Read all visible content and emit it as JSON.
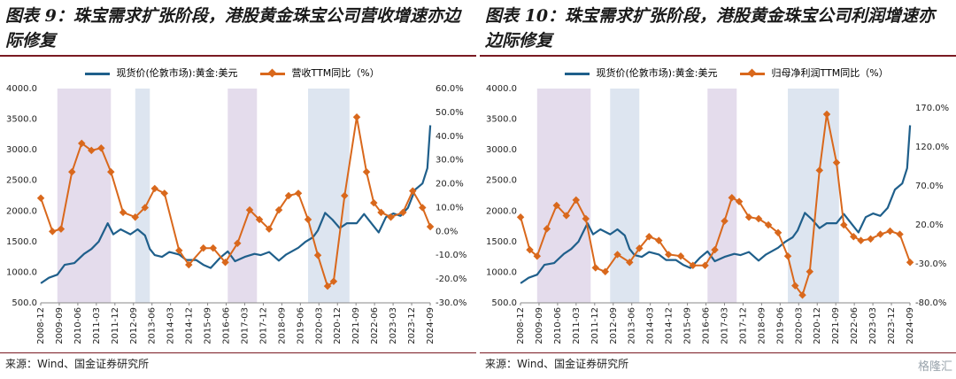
{
  "charts": [
    {
      "title": "图表 9：珠宝需求扩张阶段，港股黄金珠宝公司营收增速亦边际修复",
      "source": "来源：Wind、国金证券研究所",
      "legend_gold": "现货价(伦敦市场):黄金:美元",
      "legend_metric": "营收TTM同比（%）"
    },
    {
      "title": "图表 10：珠宝需求扩张阶段，港股黄金珠宝公司利润增速亦边际修复",
      "source": "来源：Wind、国金证券研究所",
      "legend_gold": "现货价(伦敦市场):黄金:美元",
      "legend_metric": "归母净利润TTM同比（%）"
    }
  ],
  "watermark": "格隆汇",
  "colors": {
    "gold": "#1f5f8b",
    "metric": "#d9681c",
    "shade_purple": "#e4dcec",
    "shade_blue": "#dde5f0",
    "rule": "#7a1a22"
  },
  "chart_data": [
    {
      "type": "line",
      "x_tick_labels": [
        "2008-12",
        "2009-09",
        "2010-06",
        "2011-03",
        "2011-12",
        "2012-09",
        "2013-06",
        "2014-03",
        "2014-12",
        "2015-09",
        "2016-06",
        "2017-03",
        "2017-12",
        "2018-09",
        "2019-06",
        "2020-03",
        "2020-12",
        "2021-09",
        "2022-06",
        "2023-03",
        "2023-12",
        "2024-09"
      ],
      "y_left_ticks": [
        "4000.0",
        "3500.0",
        "3000.0",
        "2500.0",
        "2000.0",
        "1500.0",
        "1000.0",
        "500.0"
      ],
      "y_left_range": [
        500,
        4000
      ],
      "y_right_ticks": [
        "60.0%",
        "50.0%",
        "40.0%",
        "30.0%",
        "20.0%",
        "10.0%",
        "0.0%",
        "-10.0%",
        "-20.0%",
        "-30.0%"
      ],
      "y_right_range": [
        -30,
        60
      ],
      "x_range": [
        2008.917,
        2024.917
      ],
      "shaded_periods": [
        {
          "start": 2009.6,
          "end": 2011.8,
          "color": "purple"
        },
        {
          "start": 2012.8,
          "end": 2013.4,
          "color": "blue"
        },
        {
          "start": 2016.6,
          "end": 2017.8,
          "color": "purple"
        },
        {
          "start": 2019.9,
          "end": 2021.6,
          "color": "blue"
        }
      ],
      "series": [
        {
          "name": "现货价(伦敦市场):黄金:美元",
          "axis": "left",
          "points": [
            [
              2008.92,
              820
            ],
            [
              2009.25,
              910
            ],
            [
              2009.6,
              960
            ],
            [
              2009.9,
              1120
            ],
            [
              2010.3,
              1150
            ],
            [
              2010.7,
              1300
            ],
            [
              2011.0,
              1380
            ],
            [
              2011.3,
              1500
            ],
            [
              2011.67,
              1800
            ],
            [
              2011.9,
              1620
            ],
            [
              2012.2,
              1700
            ],
            [
              2012.6,
              1620
            ],
            [
              2012.9,
              1700
            ],
            [
              2013.2,
              1600
            ],
            [
              2013.4,
              1380
            ],
            [
              2013.6,
              1280
            ],
            [
              2013.9,
              1250
            ],
            [
              2014.2,
              1330
            ],
            [
              2014.6,
              1290
            ],
            [
              2014.9,
              1200
            ],
            [
              2015.3,
              1200
            ],
            [
              2015.6,
              1120
            ],
            [
              2015.9,
              1070
            ],
            [
              2016.3,
              1240
            ],
            [
              2016.6,
              1340
            ],
            [
              2016.9,
              1180
            ],
            [
              2017.3,
              1250
            ],
            [
              2017.7,
              1300
            ],
            [
              2017.95,
              1280
            ],
            [
              2018.3,
              1330
            ],
            [
              2018.7,
              1190
            ],
            [
              2019.0,
              1290
            ],
            [
              2019.5,
              1400
            ],
            [
              2019.8,
              1500
            ],
            [
              2020.1,
              1570
            ],
            [
              2020.3,
              1680
            ],
            [
              2020.6,
              1970
            ],
            [
              2020.9,
              1860
            ],
            [
              2021.2,
              1720
            ],
            [
              2021.5,
              1800
            ],
            [
              2021.9,
              1800
            ],
            [
              2022.2,
              1950
            ],
            [
              2022.5,
              1800
            ],
            [
              2022.8,
              1650
            ],
            [
              2023.1,
              1900
            ],
            [
              2023.4,
              1960
            ],
            [
              2023.7,
              1920
            ],
            [
              2024.0,
              2050
            ],
            [
              2024.3,
              2350
            ],
            [
              2024.6,
              2450
            ],
            [
              2024.8,
              2700
            ],
            [
              2024.92,
              3400
            ]
          ]
        },
        {
          "name": "营收TTM同比（%）",
          "axis": "right",
          "points": [
            [
              2008.92,
              14
            ],
            [
              2009.4,
              0
            ],
            [
              2009.75,
              1
            ],
            [
              2010.2,
              25
            ],
            [
              2010.6,
              37
            ],
            [
              2011.0,
              34
            ],
            [
              2011.4,
              35
            ],
            [
              2011.8,
              25
            ],
            [
              2012.3,
              8
            ],
            [
              2012.8,
              6
            ],
            [
              2013.2,
              10
            ],
            [
              2013.6,
              18
            ],
            [
              2014.0,
              16
            ],
            [
              2014.6,
              -8
            ],
            [
              2015.0,
              -14
            ],
            [
              2015.6,
              -7
            ],
            [
              2016.0,
              -7
            ],
            [
              2016.5,
              -13
            ],
            [
              2017.0,
              -5
            ],
            [
              2017.5,
              9
            ],
            [
              2017.9,
              5
            ],
            [
              2018.3,
              1
            ],
            [
              2018.7,
              9
            ],
            [
              2019.1,
              15
            ],
            [
              2019.5,
              16
            ],
            [
              2019.9,
              5
            ],
            [
              2020.3,
              -10
            ],
            [
              2020.7,
              -23
            ],
            [
              2020.95,
              -21
            ],
            [
              2021.4,
              15
            ],
            [
              2021.9,
              48
            ],
            [
              2022.3,
              25
            ],
            [
              2022.6,
              12
            ],
            [
              2022.9,
              8
            ],
            [
              2023.3,
              6
            ],
            [
              2023.8,
              8
            ],
            [
              2024.2,
              17
            ],
            [
              2024.6,
              10
            ],
            [
              2024.92,
              2
            ]
          ]
        }
      ]
    },
    {
      "type": "line",
      "x_tick_labels": [
        "2008-12",
        "2009-09",
        "2010-06",
        "2011-03",
        "2011-12",
        "2012-09",
        "2013-06",
        "2014-03",
        "2014-12",
        "2015-09",
        "2016-06",
        "2017-03",
        "2017-12",
        "2018-09",
        "2019-06",
        "2020-03",
        "2020-12",
        "2021-09",
        "2022-06",
        "2023-03",
        "2023-12",
        "2024-09"
      ],
      "y_left_ticks": [
        "4000.0",
        "3500.0",
        "3000.0",
        "2500.0",
        "2000.0",
        "1500.0",
        "1000.0",
        "500.0"
      ],
      "y_left_range": [
        500,
        4000
      ],
      "y_right_ticks": [
        "170.0%",
        "120.0%",
        "70.0%",
        "20.0%",
        "-30.0%",
        "-80.0%"
      ],
      "y_right_range": [
        -80,
        195
      ],
      "x_range": [
        2008.917,
        2024.917
      ],
      "shaded_periods": [
        {
          "start": 2009.6,
          "end": 2011.8,
          "color": "purple"
        },
        {
          "start": 2012.6,
          "end": 2013.8,
          "color": "blue"
        },
        {
          "start": 2016.6,
          "end": 2017.8,
          "color": "purple"
        },
        {
          "start": 2019.9,
          "end": 2022.0,
          "color": "blue"
        }
      ],
      "series": [
        {
          "name": "现货价(伦敦市场):黄金:美元",
          "axis": "left",
          "points": [
            [
              2008.92,
              820
            ],
            [
              2009.25,
              910
            ],
            [
              2009.6,
              960
            ],
            [
              2009.9,
              1120
            ],
            [
              2010.3,
              1150
            ],
            [
              2010.7,
              1300
            ],
            [
              2011.0,
              1380
            ],
            [
              2011.3,
              1500
            ],
            [
              2011.67,
              1800
            ],
            [
              2011.9,
              1620
            ],
            [
              2012.2,
              1700
            ],
            [
              2012.6,
              1620
            ],
            [
              2012.9,
              1700
            ],
            [
              2013.2,
              1600
            ],
            [
              2013.4,
              1380
            ],
            [
              2013.6,
              1280
            ],
            [
              2013.9,
              1250
            ],
            [
              2014.2,
              1330
            ],
            [
              2014.6,
              1290
            ],
            [
              2014.9,
              1200
            ],
            [
              2015.3,
              1200
            ],
            [
              2015.6,
              1120
            ],
            [
              2015.9,
              1070
            ],
            [
              2016.3,
              1240
            ],
            [
              2016.6,
              1340
            ],
            [
              2016.9,
              1180
            ],
            [
              2017.3,
              1250
            ],
            [
              2017.7,
              1300
            ],
            [
              2017.95,
              1280
            ],
            [
              2018.3,
              1330
            ],
            [
              2018.7,
              1190
            ],
            [
              2019.0,
              1290
            ],
            [
              2019.5,
              1400
            ],
            [
              2019.8,
              1500
            ],
            [
              2020.1,
              1570
            ],
            [
              2020.3,
              1680
            ],
            [
              2020.6,
              1970
            ],
            [
              2020.9,
              1860
            ],
            [
              2021.2,
              1720
            ],
            [
              2021.5,
              1800
            ],
            [
              2021.9,
              1800
            ],
            [
              2022.2,
              1950
            ],
            [
              2022.5,
              1800
            ],
            [
              2022.8,
              1650
            ],
            [
              2023.1,
              1900
            ],
            [
              2023.4,
              1960
            ],
            [
              2023.7,
              1920
            ],
            [
              2024.0,
              2050
            ],
            [
              2024.3,
              2350
            ],
            [
              2024.6,
              2450
            ],
            [
              2024.8,
              2700
            ],
            [
              2024.92,
              3400
            ]
          ]
        },
        {
          "name": "归母净利润TTM同比（%）",
          "axis": "right",
          "points": [
            [
              2008.92,
              30
            ],
            [
              2009.3,
              -12
            ],
            [
              2009.6,
              -20
            ],
            [
              2010.0,
              15
            ],
            [
              2010.4,
              45
            ],
            [
              2010.8,
              32
            ],
            [
              2011.2,
              52
            ],
            [
              2011.6,
              28
            ],
            [
              2012.0,
              -35
            ],
            [
              2012.4,
              -40
            ],
            [
              2012.9,
              -18
            ],
            [
              2013.4,
              -28
            ],
            [
              2013.8,
              -10
            ],
            [
              2014.2,
              5
            ],
            [
              2014.6,
              0
            ],
            [
              2015.0,
              -18
            ],
            [
              2015.5,
              -20
            ],
            [
              2016.0,
              -32
            ],
            [
              2016.5,
              -32
            ],
            [
              2016.9,
              -12
            ],
            [
              2017.3,
              25
            ],
            [
              2017.6,
              55
            ],
            [
              2017.9,
              50
            ],
            [
              2018.3,
              30
            ],
            [
              2018.7,
              28
            ],
            [
              2019.1,
              20
            ],
            [
              2019.5,
              10
            ],
            [
              2019.9,
              -20
            ],
            [
              2020.2,
              -58
            ],
            [
              2020.5,
              -70
            ],
            [
              2020.8,
              -40
            ],
            [
              2021.2,
              90
            ],
            [
              2021.5,
              162
            ],
            [
              2021.9,
              100
            ],
            [
              2022.2,
              20
            ],
            [
              2022.6,
              5
            ],
            [
              2022.9,
              0
            ],
            [
              2023.3,
              2
            ],
            [
              2023.7,
              8
            ],
            [
              2024.1,
              12
            ],
            [
              2024.5,
              8
            ],
            [
              2024.92,
              -28
            ]
          ]
        }
      ]
    }
  ]
}
